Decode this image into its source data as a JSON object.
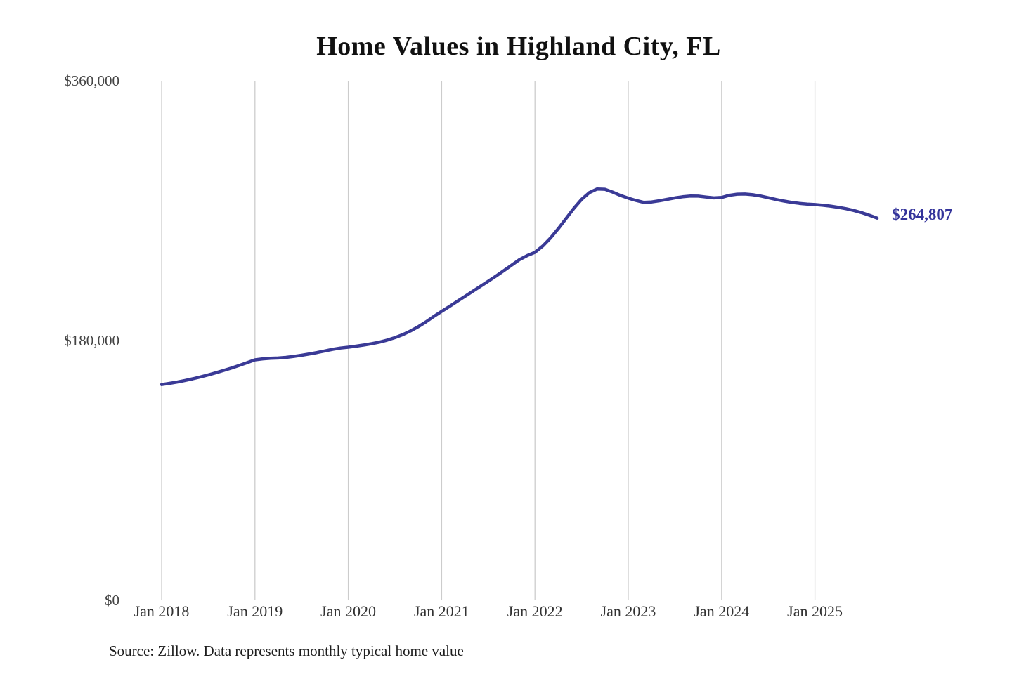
{
  "chart": {
    "title": "Home Values in Highland City, FL",
    "source_note": "Source: Zillow. Data represents monthly typical home value",
    "end_label": "$264,807",
    "line_color": "#3a3a96",
    "label_color": "#34349b",
    "gridline_color": "#cccccc",
    "background_color": "#ffffff"
  },
  "chart_data": {
    "type": "line",
    "title": "Home Values in Highland City, FL",
    "xlabel": "",
    "ylabel": "",
    "ylim": [
      0,
      360000
    ],
    "grid": "vertical-only",
    "legend_position": "none",
    "interval": "monthly",
    "x_start": "Jan 2018",
    "x_end": "Sep 2025",
    "x_ticks": [
      "Jan 2018",
      "Jan 2019",
      "Jan 2020",
      "Jan 2021",
      "Jan 2022",
      "Jan 2023",
      "Jan 2024",
      "Jan 2025"
    ],
    "y_ticks": [
      {
        "label": "$0",
        "value": 0
      },
      {
        "label": "$180,000",
        "value": 180000
      },
      {
        "label": "$360,000",
        "value": 360000
      }
    ],
    "latest_value": 264807,
    "series": [
      {
        "name": "Monthly typical home value",
        "values": [
          149500,
          150300,
          151200,
          152300,
          153500,
          154800,
          156200,
          157700,
          159300,
          161000,
          162800,
          164700,
          166600,
          167300,
          167700,
          167900,
          168300,
          169000,
          169800,
          170700,
          171700,
          172800,
          173900,
          174800,
          175400,
          176100,
          176900,
          177800,
          178900,
          180300,
          182000,
          184100,
          186600,
          189600,
          193000,
          196700,
          200200,
          203600,
          207100,
          210600,
          214100,
          217600,
          221100,
          224700,
          228400,
          232200,
          236000,
          238800,
          241100,
          245500,
          251000,
          257500,
          264500,
          271500,
          277800,
          282500,
          285000,
          284800,
          282800,
          280500,
          278600,
          277000,
          275700,
          276000,
          276800,
          277800,
          278800,
          279600,
          280100,
          280000,
          279400,
          278800,
          279100,
          280600,
          281400,
          281500,
          281000,
          280100,
          278900,
          277700,
          276600,
          275700,
          275000,
          274500,
          274200,
          273700,
          273100,
          272300,
          271300,
          270100,
          268600,
          266800,
          264807
        ]
      }
    ]
  }
}
